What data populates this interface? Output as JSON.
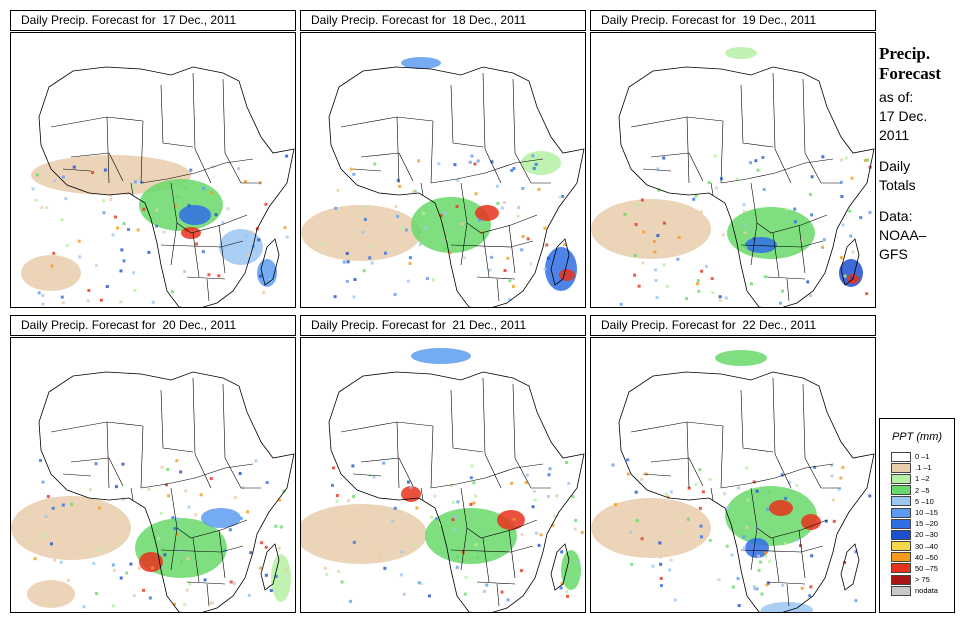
{
  "panels": [
    {
      "title": "Daily Precip. Forecast for  17 Dec., 2011"
    },
    {
      "title": "Daily Precip. Forecast for  18 Dec., 2011"
    },
    {
      "title": "Daily Precip. Forecast for  19 Dec., 2011"
    },
    {
      "title": "Daily Precip. Forecast for  20 Dec., 2011"
    },
    {
      "title": "Daily Precip. Forecast for  21 Dec., 2011"
    },
    {
      "title": "Daily Precip. Forecast for  22 Dec., 2011"
    }
  ],
  "sidebar": {
    "title_line1": "Precip.",
    "title_line2": "Forecast",
    "asof": "as of:",
    "date_line1": "17 Dec.",
    "date_line2": "2011",
    "totals_line1": "Daily",
    "totals_line2": "Totals",
    "data_line1": "Data:",
    "data_line2": "NOAA–",
    "data_line3": "GFS"
  },
  "legend": {
    "title": "PPT (mm)",
    "items": [
      {
        "label": "0 –1",
        "color": "#ffffff"
      },
      {
        "label": ".1 –1",
        "color": "#e8ccab"
      },
      {
        "label": "1 –2",
        "color": "#b5f0a3"
      },
      {
        "label": "2 –5",
        "color": "#68d96a"
      },
      {
        "label": "5 –10",
        "color": "#9cc7f2"
      },
      {
        "label": "10 –15",
        "color": "#5c9cf0"
      },
      {
        "label": "15 –20",
        "color": "#2f6fe6"
      },
      {
        "label": "20 –30",
        "color": "#1e4fcf"
      },
      {
        "label": "30 –40",
        "color": "#f5d84a"
      },
      {
        "label": "40 –50",
        "color": "#f59a1d"
      },
      {
        "label": "50 –75",
        "color": "#e8331c"
      },
      {
        "label": "> 75",
        "color": "#a81616"
      },
      {
        "label": "nodata",
        "color": "#c8c8c8"
      }
    ]
  }
}
